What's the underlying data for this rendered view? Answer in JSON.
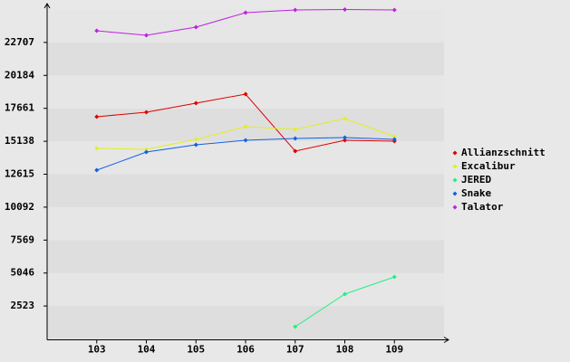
{
  "chart_data": {
    "type": "line",
    "categories": [
      "103",
      "104",
      "105",
      "106",
      "107",
      "108",
      "109"
    ],
    "series": [
      {
        "name": "Allianzschnitt",
        "color": "#e00000",
        "values": [
          17016,
          17363,
          18056,
          18749,
          14382,
          15214,
          15145
        ]
      },
      {
        "name": "Excalibur",
        "color": "#e0f020",
        "values": [
          14590,
          14521,
          15283,
          16254,
          16046,
          16877,
          15491
        ]
      },
      {
        "name": "JERED",
        "color": "#20f080",
        "values": [
          null,
          null,
          null,
          null,
          936,
          3431,
          4748
        ]
      },
      {
        "name": "Snake",
        "color": "#1060e0",
        "values": [
          12927,
          14313,
          14867,
          15214,
          15352,
          15422,
          15283
        ]
      },
      {
        "name": "Talator",
        "color": "#c020e0",
        "values": [
          23600,
          23254,
          23878,
          24987,
          25196,
          25230,
          25196
        ]
      }
    ],
    "ylim": [
      0,
      25230
    ],
    "yticks": [
      2523,
      5046,
      7569,
      10092,
      12615,
      15138,
      17661,
      20184,
      22707
    ],
    "legend": "right"
  }
}
